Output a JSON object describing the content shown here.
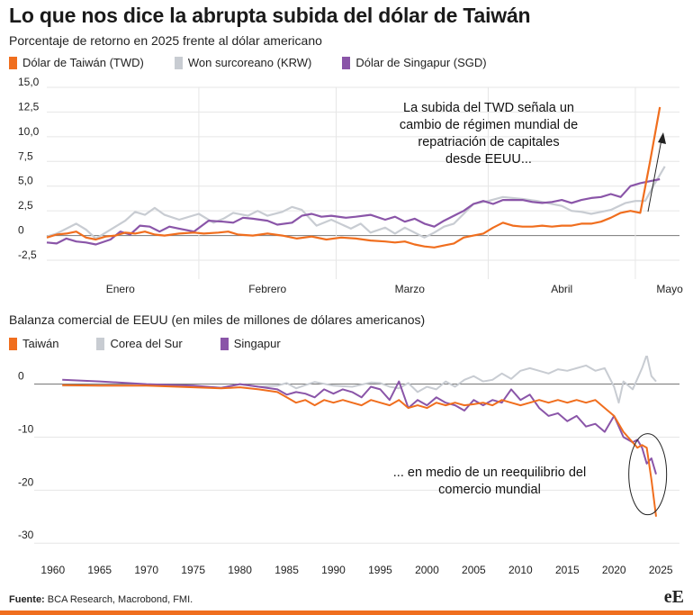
{
  "title": "Lo que nos dice la abrupta subida del dólar de Taiwán",
  "chart_data": [
    {
      "type": "line",
      "subtitle": "Porcentaje de retorno en 2025 frente al dólar americano",
      "y_ticks": [
        "15,0",
        "12,5",
        "10,0",
        "7,5",
        "5,0",
        "2,5",
        "0",
        "-2,5"
      ],
      "ylim": [
        -3.5,
        15
      ],
      "x_tick_labels": [
        "Enero",
        "Febrero",
        "Marzo",
        "Abril",
        "Mayo"
      ],
      "x_range_days": [
        0,
        129
      ],
      "legend": [
        {
          "name": "Dólar de Taiwán (TWD)",
          "color": "#f06e1e"
        },
        {
          "name": "Won surcoreano (KRW)",
          "color": "#c8ccd2"
        },
        {
          "name": "Dólar de Singapur (SGD)",
          "color": "#8a55a8"
        }
      ],
      "annotation": "La subida del TWD señala un cambio de régimen mundial de repatriación de capitales desde EEUU...",
      "series": [
        {
          "name": "Won surcoreano (KRW)",
          "color": "#c8ccd2",
          "x": [
            0,
            2,
            6,
            8,
            10,
            14,
            16,
            18,
            20,
            22,
            24,
            27,
            31,
            34,
            36,
            38,
            41,
            43,
            45,
            48,
            50,
            52,
            55,
            58,
            62,
            64,
            66,
            69,
            71,
            73,
            77,
            79,
            81,
            83,
            85,
            87,
            90,
            93,
            97,
            100,
            103,
            105,
            107,
            109,
            111,
            113,
            115,
            118,
            120,
            122,
            124,
            126
          ],
          "y": [
            -0.1,
            0.2,
            1.2,
            0.6,
            -0.3,
            0.9,
            1.5,
            2.4,
            2.1,
            2.8,
            2.1,
            1.6,
            2.2,
            1.3,
            1.7,
            2.3,
            2.0,
            2.5,
            2.0,
            2.4,
            2.9,
            2.6,
            1.0,
            1.6,
            0.7,
            1.2,
            0.3,
            0.8,
            0.2,
            0.8,
            -0.2,
            0.3,
            0.9,
            1.2,
            2.2,
            3.2,
            3.5,
            3.9,
            3.7,
            3.5,
            3.2,
            3.0,
            2.5,
            2.4,
            2.2,
            2.4,
            2.6,
            3.3,
            3.5,
            3.5,
            5.3,
            7.0
          ]
        },
        {
          "name": "Dólar de Singapur (SGD)",
          "color": "#8a55a8",
          "x": [
            0,
            2,
            4,
            6,
            8,
            10,
            13,
            15,
            17,
            19,
            21,
            23,
            25,
            27,
            30,
            33,
            36,
            38,
            40,
            42,
            45,
            47,
            50,
            52,
            54,
            56,
            58,
            61,
            63,
            66,
            69,
            71,
            73,
            75,
            77,
            79,
            81,
            83,
            85,
            87,
            89,
            91,
            93,
            95,
            97,
            99,
            101,
            103,
            105,
            107,
            109,
            111,
            113,
            115,
            117,
            119,
            121,
            123,
            125
          ],
          "y": [
            -0.7,
            -0.8,
            -0.3,
            -0.6,
            -0.7,
            -0.9,
            -0.4,
            0.4,
            0.1,
            1.0,
            0.9,
            0.4,
            0.9,
            0.7,
            0.4,
            1.5,
            1.4,
            1.3,
            1.8,
            1.7,
            1.5,
            1.1,
            1.3,
            2.0,
            2.2,
            1.9,
            2.0,
            1.8,
            1.9,
            2.1,
            1.6,
            1.9,
            1.4,
            1.7,
            1.2,
            0.9,
            1.5,
            2.0,
            2.5,
            3.2,
            3.5,
            3.2,
            3.6,
            3.6,
            3.6,
            3.4,
            3.3,
            3.4,
            3.6,
            3.3,
            3.6,
            3.8,
            3.9,
            4.2,
            3.9,
            5.0,
            5.3,
            5.5,
            5.7
          ]
        },
        {
          "name": "Dólar de Taiwán (TWD)",
          "color": "#f06e1e",
          "x": [
            0,
            2,
            4,
            6,
            8,
            10,
            12,
            14,
            16,
            18,
            20,
            22,
            24,
            27,
            30,
            32,
            35,
            37,
            39,
            42,
            45,
            48,
            51,
            54,
            57,
            60,
            63,
            66,
            69,
            71,
            73,
            75,
            77,
            79,
            81,
            83,
            85,
            87,
            89,
            91,
            93,
            95,
            97,
            99,
            101,
            103,
            105,
            107,
            109,
            111,
            113,
            115,
            117,
            119,
            120,
            121,
            123,
            125
          ],
          "y": [
            -0.2,
            0.1,
            0.2,
            0.4,
            -0.2,
            -0.4,
            -0.1,
            0.0,
            0.3,
            0.2,
            0.4,
            0.1,
            0.0,
            0.2,
            0.3,
            0.2,
            0.3,
            0.4,
            0.1,
            0.0,
            0.2,
            0.0,
            -0.3,
            -0.1,
            -0.4,
            -0.2,
            -0.3,
            -0.5,
            -0.6,
            -0.7,
            -0.6,
            -0.9,
            -1.1,
            -1.2,
            -1.0,
            -0.8,
            -0.2,
            0.0,
            0.2,
            0.8,
            1.3,
            1.0,
            0.9,
            0.9,
            1.0,
            0.9,
            1.0,
            1.0,
            1.2,
            1.2,
            1.4,
            1.8,
            2.3,
            2.5,
            2.4,
            2.3,
            7.5,
            13.0
          ]
        }
      ]
    },
    {
      "type": "line",
      "subtitle": "Balanza comercial de EEUU (en miles de millones de dólares americanos)",
      "y_ticks": [
        "0",
        "-10",
        "-20",
        "-30"
      ],
      "ylim": [
        -32,
        4
      ],
      "x_ticks": [
        1960,
        1965,
        1970,
        1975,
        1980,
        1985,
        1990,
        1995,
        2000,
        2005,
        2010,
        2015,
        2020,
        2025
      ],
      "xlim": [
        1958,
        2027
      ],
      "legend": [
        {
          "name": "Taiwán",
          "color": "#f06e1e"
        },
        {
          "name": "Corea del Sur",
          "color": "#c8ccd2"
        },
        {
          "name": "Singapur",
          "color": "#8a55a8"
        }
      ],
      "annotation": "... en medio de un reequilibrio del comercio  mundial",
      "series": [
        {
          "name": "Corea del Sur",
          "color": "#c8ccd2",
          "x": [
            1961,
            1965,
            1970,
            1975,
            1978,
            1980,
            1982,
            1984,
            1985,
            1986,
            1987,
            1988,
            1990,
            1992,
            1994,
            1995,
            1996,
            1997,
            1998,
            1999,
            2000,
            2001,
            2002,
            2003,
            2004,
            2005,
            2006,
            2007,
            2008,
            2009,
            2010,
            2011,
            2012,
            2013,
            2014,
            2015,
            2016,
            2017,
            2018,
            2019,
            2020,
            2020.5,
            2021,
            2022,
            2022.5,
            2023,
            2023.5,
            2024,
            2024.5
          ],
          "y": [
            -0.3,
            -0.3,
            -0.3,
            -0.4,
            -0.7,
            0.0,
            -0.5,
            -0.3,
            0.2,
            -0.8,
            -0.2,
            0.4,
            -0.3,
            -0.5,
            0.3,
            0.2,
            -0.5,
            -0.8,
            0.2,
            -1.5,
            -0.5,
            -1.0,
            0.5,
            -0.5,
            0.8,
            1.5,
            0.5,
            0.8,
            2.0,
            1.0,
            2.5,
            3.0,
            2.5,
            2.0,
            2.8,
            2.5,
            3.0,
            3.5,
            2.5,
            3.0,
            -0.5,
            -3.5,
            0.5,
            -1.0,
            1.0,
            3.0,
            5.5,
            1.5,
            0.5
          ]
        },
        {
          "name": "Singapur",
          "color": "#8a55a8",
          "x": [
            1961,
            1965,
            1970,
            1975,
            1978,
            1980,
            1982,
            1984,
            1985,
            1986,
            1987,
            1988,
            1989,
            1990,
            1991,
            1992,
            1993,
            1994,
            1995,
            1996,
            1997,
            1998,
            1999,
            2000,
            2001,
            2002,
            2003,
            2004,
            2005,
            2006,
            2007,
            2008,
            2009,
            2010,
            2011,
            2012,
            2013,
            2014,
            2015,
            2016,
            2017,
            2018,
            2019,
            2020,
            2021,
            2022,
            2022.5,
            2023,
            2023.5,
            2024,
            2024.5
          ],
          "y": [
            0.8,
            0.5,
            0.0,
            -0.3,
            -0.7,
            0.0,
            -0.5,
            -1.0,
            -2.0,
            -1.5,
            -1.8,
            -2.5,
            -1.0,
            -1.8,
            -1.0,
            -1.5,
            -2.5,
            -0.5,
            -1.0,
            -3.0,
            0.5,
            -4.5,
            -3.0,
            -4.0,
            -2.5,
            -3.5,
            -4.0,
            -5.0,
            -3.0,
            -4.0,
            -3.0,
            -3.5,
            -1.0,
            -3.0,
            -2.0,
            -4.5,
            -6.0,
            -5.5,
            -7.0,
            -6.0,
            -8.0,
            -7.5,
            -9.0,
            -6.0,
            -10.0,
            -11.0,
            -10.5,
            -12.0,
            -15.0,
            -14.0,
            -17.0
          ]
        },
        {
          "name": "Taiwán",
          "color": "#f06e1e",
          "x": [
            1961,
            1965,
            1970,
            1975,
            1978,
            1980,
            1982,
            1984,
            1985,
            1986,
            1987,
            1988,
            1989,
            1990,
            1991,
            1992,
            1993,
            1994,
            1995,
            1996,
            1997,
            1998,
            1999,
            2000,
            2001,
            2002,
            2003,
            2004,
            2005,
            2006,
            2007,
            2008,
            2009,
            2010,
            2011,
            2012,
            2013,
            2014,
            2015,
            2016,
            2017,
            2018,
            2019,
            2020,
            2021,
            2022,
            2022.5,
            2023,
            2023.5,
            2024,
            2024.5
          ],
          "y": [
            -0.2,
            -0.3,
            -0.3,
            -0.6,
            -0.8,
            -0.6,
            -1.0,
            -1.5,
            -2.5,
            -3.5,
            -3.0,
            -4.0,
            -3.0,
            -3.5,
            -3.0,
            -3.5,
            -4.0,
            -3.0,
            -3.5,
            -4.0,
            -3.0,
            -4.5,
            -4.0,
            -4.5,
            -3.5,
            -4.0,
            -3.5,
            -4.0,
            -3.8,
            -3.5,
            -4.0,
            -3.0,
            -3.5,
            -4.0,
            -3.5,
            -3.0,
            -3.5,
            -3.0,
            -3.5,
            -3.0,
            -3.5,
            -3.0,
            -4.5,
            -6.0,
            -9.0,
            -11.0,
            -12.0,
            -11.5,
            -12.0,
            -18.0,
            -25.0
          ]
        }
      ]
    }
  ],
  "source_label": "Fuente:",
  "source_text": " BCA Research, Macrobond, FMI.",
  "logo": "eE"
}
